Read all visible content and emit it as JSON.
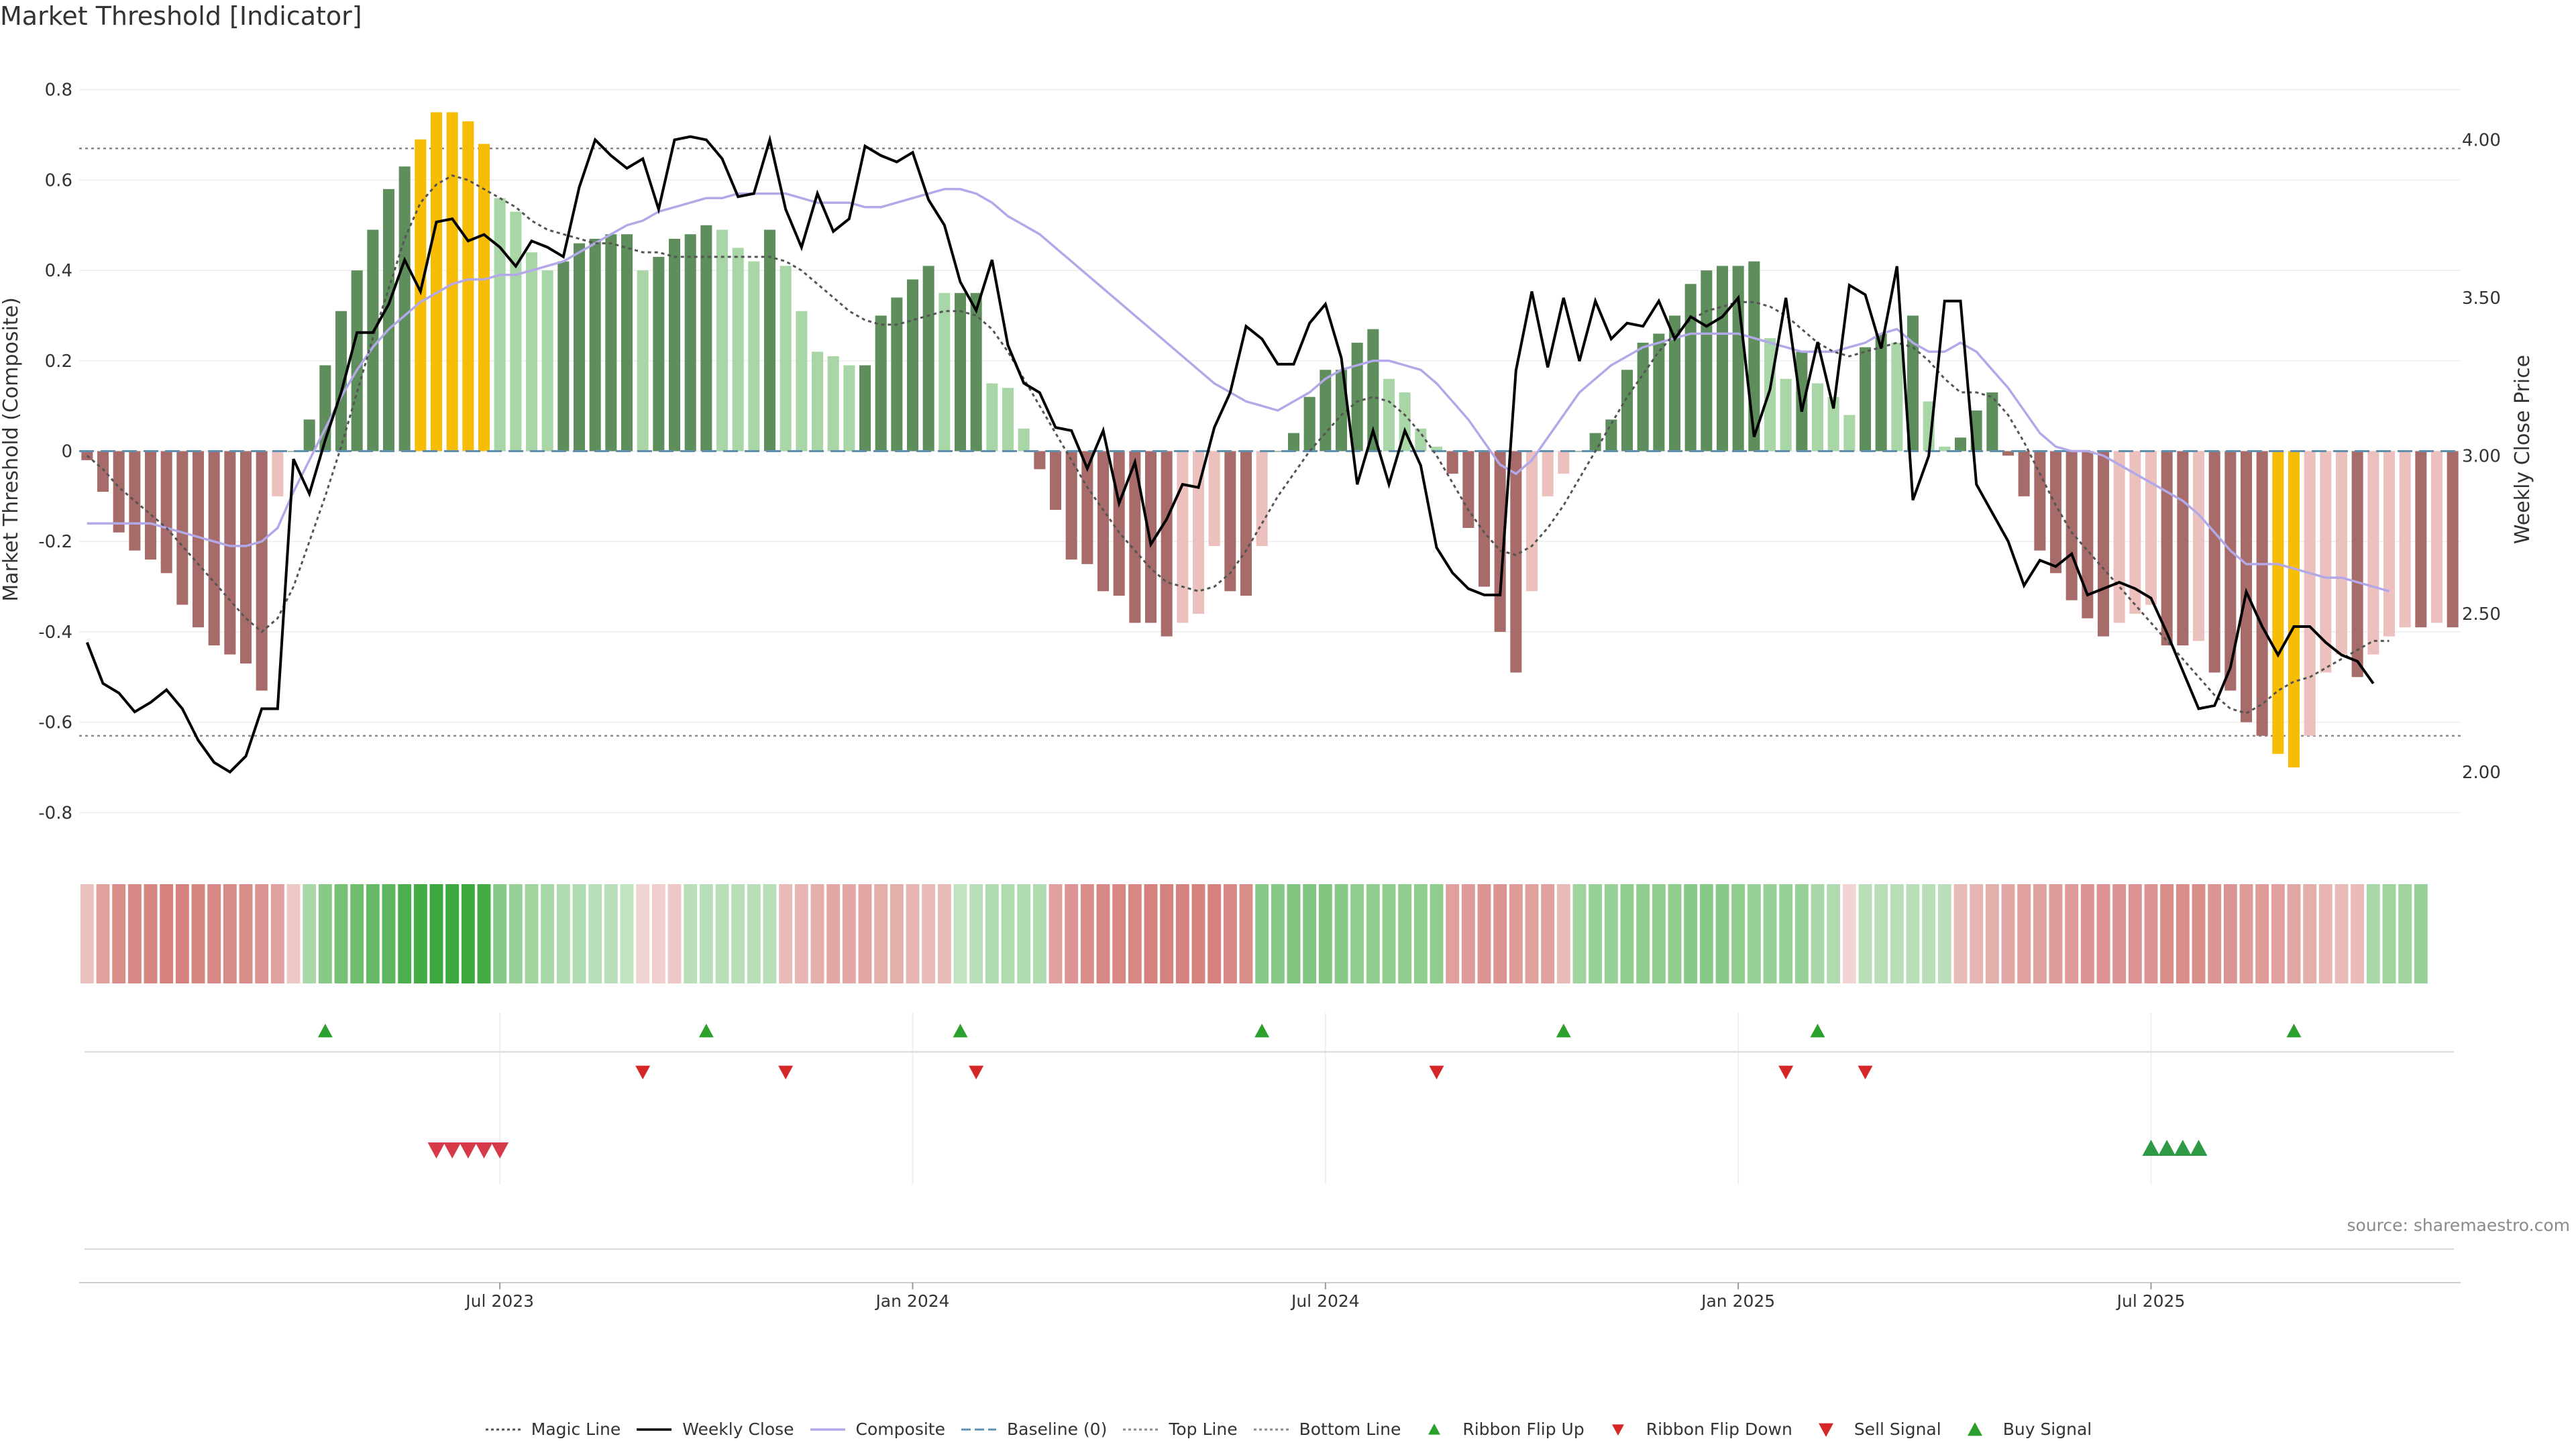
{
  "title": "Market Threshold [Indicator]",
  "source": "source: sharemaestro.com",
  "colors": {
    "strong_up": "#5e8e5b",
    "light_up": "#a9d6a7",
    "strong_down": "#a76c69",
    "light_down": "#ecc0bc",
    "extreme": "#f7bd05",
    "weekly_close": "#000000",
    "composite": "#b3a9e8",
    "magic": "#555555",
    "baseline": "#5f8fae",
    "threshold_line": "#888888",
    "buy": "#2ca02c",
    "sell": "#d62728"
  },
  "chart_data": {
    "type": "bar",
    "title": "Market Threshold [Indicator]",
    "ylabel": "Market Threshold (Composite)",
    "y2label": "Weekly Close Price",
    "ylim": [
      -0.85,
      0.85
    ],
    "y2lim": [
      1.8,
      4.23
    ],
    "yticks": [
      "0.8",
      "0.6",
      "0.4",
      "0.2",
      "0",
      "-0.2",
      "-0.4",
      "-0.6",
      "-0.8"
    ],
    "y2ticks": [
      "4.00",
      "3.50",
      "3.00",
      "2.50",
      "2.00"
    ],
    "xticks": [
      {
        "label": "Jul 2023",
        "week": 26
      },
      {
        "label": "Jan 2024",
        "week": 52
      },
      {
        "label": "Jul 2024",
        "week": 78
      },
      {
        "label": "Jan 2025",
        "week": 104
      },
      {
        "label": "Jul 2025",
        "week": 130
      }
    ],
    "top_line": 0.67,
    "bottom_line": -0.63,
    "composite_bars": [
      -0.02,
      -0.09,
      -0.18,
      -0.22,
      -0.24,
      -0.27,
      -0.34,
      -0.39,
      -0.43,
      -0.45,
      -0.47,
      -0.53,
      -0.1,
      0,
      0.07,
      0.19,
      0.31,
      0.4,
      0.49,
      0.58,
      0.63,
      0.69,
      0.75,
      0.75,
      0.73,
      0.68,
      0.56,
      0.53,
      0.44,
      0.4,
      0.42,
      0.46,
      0.47,
      0.48,
      0.48,
      0.4,
      0.43,
      0.47,
      0.48,
      0.5,
      0.49,
      0.45,
      0.42,
      0.49,
      0.41,
      0.31,
      0.22,
      0.21,
      0.19,
      0.19,
      0.3,
      0.34,
      0.38,
      0.41,
      0.35,
      0.35,
      0.35,
      0.15,
      0.14,
      0.05,
      -0.04,
      -0.13,
      -0.24,
      -0.25,
      -0.31,
      -0.32,
      -0.38,
      -0.38,
      -0.41,
      -0.38,
      -0.36,
      -0.21,
      -0.31,
      -0.32,
      -0.21,
      0,
      0.04,
      0.12,
      0.18,
      0.18,
      0.24,
      0.27,
      0.16,
      0.13,
      0.05,
      0.01,
      -0.05,
      -0.17,
      -0.3,
      -0.4,
      -0.49,
      -0.31,
      -0.1,
      -0.05,
      0,
      0.04,
      0.07,
      0.18,
      0.24,
      0.26,
      0.3,
      0.37,
      0.4,
      0.41,
      0.41,
      0.42,
      0.25,
      0.16,
      0.22,
      0.15,
      0.12,
      0.08,
      0.23,
      0.26,
      0.24,
      0.3,
      0.11,
      0.01,
      0.03,
      0.09,
      0.13,
      -0.01,
      -0.1,
      -0.22,
      -0.27,
      -0.33,
      -0.37,
      -0.41,
      -0.38,
      -0.36,
      -0.34,
      -0.43,
      -0.43,
      -0.42,
      -0.49,
      -0.53,
      -0.6,
      -0.63,
      -0.67,
      -0.7,
      -0.63,
      -0.49,
      -0.45,
      -0.5,
      -0.45,
      -0.41,
      -0.39,
      -0.39,
      -0.38,
      -0.39
    ],
    "weekly_close": [
      2.41,
      2.28,
      2.25,
      2.19,
      2.22,
      2.26,
      2.2,
      2.1,
      2.03,
      2.0,
      2.05,
      2.2,
      2.2,
      2.99,
      2.88,
      3.05,
      3.2,
      3.39,
      3.39,
      3.48,
      3.62,
      3.52,
      3.74,
      3.75,
      3.68,
      3.7,
      3.66,
      3.6,
      3.68,
      3.66,
      3.63,
      3.85,
      4.0,
      3.95,
      3.91,
      3.94,
      3.78,
      4.0,
      4.01,
      4.0,
      3.94,
      3.82,
      3.83,
      4.0,
      3.78,
      3.66,
      3.83,
      3.71,
      3.75,
      3.98,
      3.95,
      3.93,
      3.96,
      3.81,
      3.73,
      3.55,
      3.46,
      3.62,
      3.35,
      3.23,
      3.2,
      3.09,
      3.08,
      2.96,
      3.08,
      2.85,
      2.98,
      2.72,
      2.8,
      2.91,
      2.9,
      3.09,
      3.2,
      3.41,
      3.37,
      3.29,
      3.29,
      3.42,
      3.48,
      3.31,
      2.91,
      3.08,
      2.91,
      3.08,
      2.97,
      2.71,
      2.63,
      2.58,
      2.56,
      2.56,
      3.27,
      3.52,
      3.28,
      3.5,
      3.3,
      3.49,
      3.37,
      3.42,
      3.41,
      3.49,
      3.37,
      3.44,
      3.41,
      3.44,
      3.5,
      3.06,
      3.21,
      3.5,
      3.14,
      3.36,
      3.15,
      3.54,
      3.51,
      3.34,
      3.6,
      2.86,
      3.0,
      3.49,
      3.49,
      2.91,
      2.82,
      2.73,
      2.59,
      2.67,
      2.65,
      2.69,
      2.56,
      2.58,
      2.6,
      2.58,
      2.55,
      2.44,
      2.32,
      2.2,
      2.21,
      2.33,
      2.57,
      2.46,
      2.37,
      2.46,
      2.46,
      2.41,
      2.37,
      2.35,
      2.28
    ],
    "composite_line": [
      -0.16,
      -0.16,
      -0.16,
      -0.16,
      -0.16,
      -0.17,
      -0.18,
      -0.19,
      -0.2,
      -0.21,
      -0.21,
      -0.2,
      -0.17,
      -0.09,
      -0.02,
      0.05,
      0.12,
      0.18,
      0.23,
      0.27,
      0.3,
      0.33,
      0.35,
      0.37,
      0.38,
      0.38,
      0.39,
      0.39,
      0.4,
      0.41,
      0.42,
      0.44,
      0.46,
      0.48,
      0.5,
      0.51,
      0.53,
      0.54,
      0.55,
      0.56,
      0.56,
      0.57,
      0.57,
      0.57,
      0.57,
      0.56,
      0.55,
      0.55,
      0.55,
      0.54,
      0.54,
      0.55,
      0.56,
      0.57,
      0.58,
      0.58,
      0.57,
      0.55,
      0.52,
      0.5,
      0.48,
      0.45,
      0.42,
      0.39,
      0.36,
      0.33,
      0.3,
      0.27,
      0.24,
      0.21,
      0.18,
      0.15,
      0.13,
      0.11,
      0.1,
      0.09,
      0.11,
      0.13,
      0.16,
      0.18,
      0.19,
      0.2,
      0.2,
      0.19,
      0.18,
      0.15,
      0.11,
      0.07,
      0.02,
      -0.03,
      -0.05,
      -0.02,
      0.03,
      0.08,
      0.13,
      0.16,
      0.19,
      0.21,
      0.23,
      0.24,
      0.25,
      0.26,
      0.26,
      0.26,
      0.26,
      0.25,
      0.24,
      0.23,
      0.22,
      0.22,
      0.22,
      0.23,
      0.24,
      0.26,
      0.27,
      0.24,
      0.22,
      0.22,
      0.24,
      0.22,
      0.18,
      0.14,
      0.09,
      0.04,
      0.01,
      0.0,
      0.0,
      -0.01,
      -0.03,
      -0.05,
      -0.07,
      -0.09,
      -0.11,
      -0.14,
      -0.18,
      -0.22,
      -0.25,
      -0.25,
      -0.25,
      -0.26,
      -0.27,
      -0.28,
      -0.28,
      -0.29,
      -0.3,
      -0.31
    ],
    "magic_line": [
      -0.01,
      -0.04,
      -0.08,
      -0.11,
      -0.14,
      -0.17,
      -0.21,
      -0.25,
      -0.29,
      -0.33,
      -0.37,
      -0.4,
      -0.37,
      -0.3,
      -0.2,
      -0.1,
      0.01,
      0.13,
      0.25,
      0.36,
      0.47,
      0.55,
      0.59,
      0.61,
      0.6,
      0.58,
      0.56,
      0.54,
      0.51,
      0.49,
      0.48,
      0.47,
      0.46,
      0.46,
      0.45,
      0.44,
      0.44,
      0.43,
      0.43,
      0.43,
      0.43,
      0.43,
      0.43,
      0.43,
      0.42,
      0.4,
      0.37,
      0.34,
      0.31,
      0.29,
      0.28,
      0.28,
      0.29,
      0.3,
      0.31,
      0.31,
      0.3,
      0.27,
      0.22,
      0.16,
      0.1,
      0.04,
      -0.02,
      -0.08,
      -0.13,
      -0.18,
      -0.22,
      -0.26,
      -0.29,
      -0.3,
      -0.31,
      -0.3,
      -0.27,
      -0.22,
      -0.16,
      -0.1,
      -0.05,
      0.0,
      0.04,
      0.08,
      0.11,
      0.12,
      0.11,
      0.08,
      0.04,
      -0.01,
      -0.07,
      -0.13,
      -0.18,
      -0.22,
      -0.23,
      -0.21,
      -0.17,
      -0.12,
      -0.06,
      0.0,
      0.06,
      0.12,
      0.17,
      0.22,
      0.26,
      0.29,
      0.31,
      0.32,
      0.33,
      0.33,
      0.32,
      0.3,
      0.27,
      0.24,
      0.22,
      0.21,
      0.22,
      0.23,
      0.24,
      0.23,
      0.2,
      0.16,
      0.13,
      0.13,
      0.12,
      0.08,
      0.02,
      -0.05,
      -0.12,
      -0.18,
      -0.22,
      -0.26,
      -0.3,
      -0.34,
      -0.38,
      -0.42,
      -0.46,
      -0.5,
      -0.54,
      -0.57,
      -0.58,
      -0.56,
      -0.53,
      -0.51,
      -0.5,
      -0.48,
      -0.46,
      -0.44,
      -0.42,
      -0.42
    ],
    "ribbon": [
      -0.25,
      -0.5,
      -0.65,
      -0.7,
      -0.72,
      -0.75,
      -0.75,
      -0.72,
      -0.7,
      -0.68,
      -0.65,
      -0.6,
      -0.5,
      -0.2,
      0.3,
      0.5,
      0.6,
      0.65,
      0.7,
      0.75,
      0.85,
      0.9,
      0.95,
      0.95,
      0.95,
      0.9,
      0.5,
      0.4,
      0.35,
      0.3,
      0.25,
      0.25,
      0.2,
      0.2,
      0.15,
      -0.1,
      -0.15,
      -0.2,
      0.2,
      0.2,
      0.2,
      0.2,
      0.2,
      0.2,
      -0.3,
      -0.35,
      -0.4,
      -0.45,
      -0.45,
      -0.45,
      -0.4,
      -0.4,
      -0.35,
      -0.3,
      -0.3,
      0.15,
      0.2,
      0.25,
      0.25,
      0.25,
      0.25,
      -0.5,
      -0.6,
      -0.65,
      -0.7,
      -0.7,
      -0.7,
      -0.75,
      -0.75,
      -0.75,
      -0.75,
      -0.75,
      -0.7,
      -0.65,
      0.5,
      0.5,
      0.55,
      0.55,
      0.55,
      0.5,
      0.45,
      0.45,
      0.45,
      0.45,
      0.45,
      0.45,
      -0.5,
      -0.55,
      -0.6,
      -0.6,
      -0.55,
      -0.5,
      -0.5,
      -0.3,
      0.35,
      0.4,
      0.4,
      0.45,
      0.45,
      0.45,
      0.45,
      0.5,
      0.5,
      0.5,
      0.45,
      0.4,
      0.4,
      0.4,
      0.4,
      0.3,
      0.25,
      -0.1,
      0.2,
      0.2,
      0.2,
      0.2,
      0.2,
      0.2,
      -0.3,
      -0.35,
      -0.4,
      -0.45,
      -0.5,
      -0.5,
      -0.55,
      -0.55,
      -0.6,
      -0.6,
      -0.6,
      -0.6,
      -0.6,
      -0.65,
      -0.65,
      -0.65,
      -0.6,
      -0.6,
      -0.55,
      -0.55,
      -0.5,
      -0.45,
      -0.4,
      -0.35,
      -0.3,
      -0.3,
      0.3,
      0.35,
      0.35,
      0.4
    ],
    "ribbon_flip_up": [
      15,
      39,
      55,
      74,
      93,
      109,
      139
    ],
    "ribbon_flip_down": [
      35,
      44,
      56,
      85,
      107,
      112
    ],
    "sell_signals": [
      22,
      23,
      24,
      25,
      26
    ],
    "buy_signals": [
      130,
      131,
      132,
      133
    ],
    "legend": [
      {
        "label": "Magic Line",
        "kind": "dotted",
        "color": "#555555"
      },
      {
        "label": "Weekly Close",
        "kind": "solid",
        "color": "#000000"
      },
      {
        "label": "Composite",
        "kind": "solid",
        "color": "#b3a9e8"
      },
      {
        "label": "Baseline (0)",
        "kind": "dashed",
        "color": "#5f8fae"
      },
      {
        "label": "Top Line",
        "kind": "dotted",
        "color": "#888888"
      },
      {
        "label": "Bottom Line",
        "kind": "dotted",
        "color": "#888888"
      },
      {
        "label": "Ribbon Flip Up",
        "kind": "up-small",
        "color": "#2ca02c"
      },
      {
        "label": "Ribbon Flip Down",
        "kind": "down-small",
        "color": "#d62728"
      },
      {
        "label": "Sell Signal",
        "kind": "down-big",
        "color": "#d62728"
      },
      {
        "label": "Buy Signal",
        "kind": "up-big",
        "color": "#2ca02c"
      }
    ]
  }
}
